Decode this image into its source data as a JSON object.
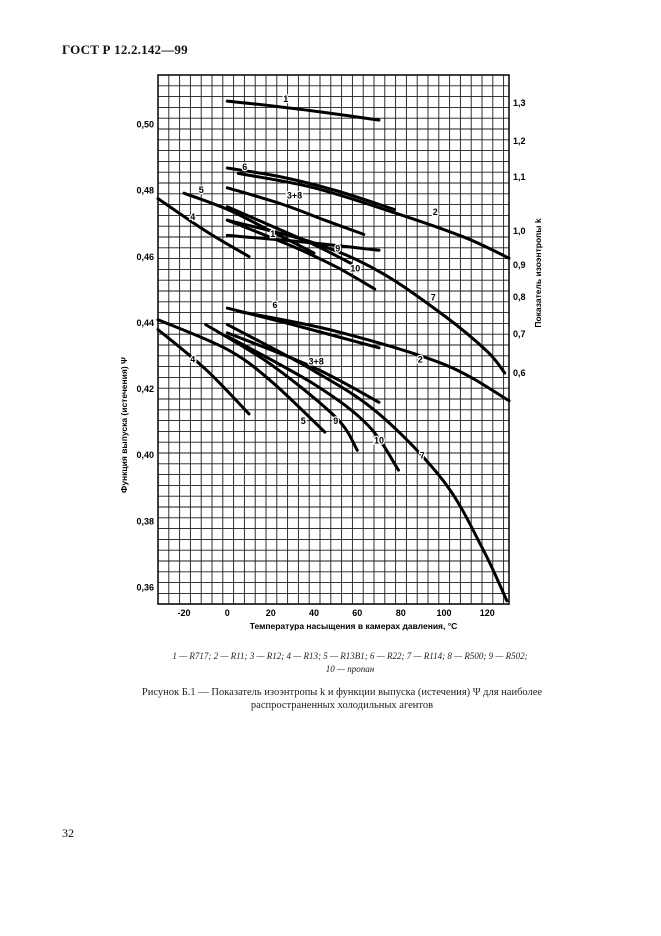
{
  "document": {
    "header": "ГОСТ Р 12.2.142—99",
    "page_number": "32"
  },
  "legend_items": [
    {
      "num": "1",
      "text": "R717"
    },
    {
      "num": "2",
      "text": "R11"
    },
    {
      "num": "3",
      "text": "R12"
    },
    {
      "num": "4",
      "text": "R13"
    },
    {
      "num": "5",
      "text": "R13B1"
    },
    {
      "num": "6",
      "text": "R22"
    },
    {
      "num": "7",
      "text": "R114"
    },
    {
      "num": "8",
      "text": "R500"
    },
    {
      "num": "9",
      "text": "R502"
    },
    {
      "num": "10",
      "text": "пропан"
    }
  ],
  "caption": {
    "label": "Рисунок Б.1",
    "text": "Показатель изоэнтропы k и функции выпуска (истечения) Ψ для наиболее распространенных холодильных агентов"
  },
  "chart_data": {
    "type": "line",
    "xlabel": "Температура насыщения в камерах давления, °С",
    "xlim": [
      -32,
      130
    ],
    "x_ticks": [
      -20,
      0,
      20,
      40,
      60,
      80,
      100,
      120
    ],
    "x_tick_labels": [
      "-20",
      "0",
      "20",
      "40",
      "60",
      "80",
      "100",
      "120"
    ],
    "right_axis": {
      "label": "Показатель изоэнтропы k",
      "ticks": [
        1.3,
        1.2,
        1.1,
        1.0,
        0.9,
        0.8,
        0.7,
        0.6
      ],
      "tick_labels": [
        "1,3",
        "1,2",
        "1,1",
        "1,0",
        "0,9",
        "0,8",
        "0,7",
        "0,6"
      ]
    },
    "left_axis": {
      "label": "Функция выпуска (истечения) Ψ",
      "ylim": [
        0.355,
        0.515
      ],
      "ticks": [
        0.5,
        0.48,
        0.46,
        0.44,
        0.42,
        0.4,
        0.38,
        0.36
      ],
      "tick_labels": [
        "0,50",
        "0,48",
        "0,46",
        "0,44",
        "0,42",
        "0,40",
        "0,38",
        "0,36"
      ]
    },
    "grid": true,
    "k_series": [
      {
        "label": "1",
        "points": [
          [
            0,
            1.305
          ],
          [
            20,
            1.293
          ],
          [
            45,
            1.275
          ],
          [
            70,
            1.255
          ]
        ],
        "label_at": [
          27,
          1.303
        ]
      },
      {
        "label": "6",
        "points": [
          [
            0,
            1.125
          ],
          [
            25,
            1.1
          ],
          [
            50,
            1.075
          ],
          [
            77,
            1.04
          ]
        ],
        "label_at": [
          8,
          1.12
        ]
      },
      {
        "label": "2",
        "points": [
          [
            5,
            1.11
          ],
          [
            40,
            1.08
          ],
          [
            80,
            1.03
          ],
          [
            110,
            0.98
          ],
          [
            130,
            0.92
          ]
        ],
        "label_at": [
          96,
          1.03
        ]
      },
      {
        "label": "3+8",
        "points": [
          [
            0,
            1.08
          ],
          [
            25,
            1.05
          ],
          [
            45,
            1.02
          ],
          [
            63,
            0.99
          ]
        ],
        "label_at": [
          31,
          1.06
        ]
      },
      {
        "label": "5",
        "points": [
          [
            -20,
            1.07
          ],
          [
            0,
            1.04
          ],
          [
            20,
            1.0
          ],
          [
            40,
            0.935
          ]
        ],
        "label_at": [
          -12,
          1.07
        ]
      },
      {
        "label": "9",
        "points": [
          [
            0,
            1.045
          ],
          [
            20,
            1.01
          ],
          [
            40,
            0.96
          ],
          [
            57,
            0.905
          ]
        ],
        "label_at": [
          51,
          0.94
        ]
      },
      {
        "label": "4",
        "points": [
          [
            -32,
            1.06
          ],
          [
            -10,
            1.0
          ],
          [
            10,
            0.925
          ]
        ],
        "label_at": [
          -16,
          1.02
        ]
      },
      {
        "label": "10",
        "points": [
          [
            0,
            1.02
          ],
          [
            30,
            0.955
          ],
          [
            50,
            0.895
          ],
          [
            68,
            0.825
          ]
        ],
        "label_at": [
          59,
          0.88
        ]
      },
      {
        "label": "7",
        "points": [
          [
            0,
            1.02
          ],
          [
            40,
            0.965
          ],
          [
            70,
            0.88
          ],
          [
            100,
            0.75
          ],
          [
            120,
            0.655
          ],
          [
            128,
            0.6
          ]
        ],
        "label_at": [
          95,
          0.79
        ]
      }
    ],
    "psi_series": [
      {
        "label": "1",
        "points": [
          [
            0,
            0.4665
          ],
          [
            35,
            0.4645
          ],
          [
            70,
            0.462
          ]
        ],
        "label_at": [
          21,
          0.466
        ]
      },
      {
        "label": "6",
        "points": [
          [
            0,
            0.4445
          ],
          [
            30,
            0.4395
          ],
          [
            70,
            0.4325
          ]
        ],
        "label_at": [
          22,
          0.4445
        ]
      },
      {
        "label": "2",
        "points": [
          [
            5,
            0.4435
          ],
          [
            50,
            0.4375
          ],
          [
            100,
            0.4275
          ],
          [
            130,
            0.4165
          ]
        ],
        "label_at": [
          89,
          0.428
        ]
      },
      {
        "label": "3+8",
        "points": [
          [
            0,
            0.437
          ],
          [
            40,
            0.4265
          ],
          [
            70,
            0.416
          ]
        ],
        "label_at": [
          41,
          0.4275
        ]
      },
      {
        "label": "4",
        "points": [
          [
            -32,
            0.438
          ],
          [
            -10,
            0.426
          ],
          [
            10,
            0.4125
          ]
        ],
        "label_at": [
          -16,
          0.428
        ]
      },
      {
        "label": "5",
        "points": [
          [
            -32,
            0.441
          ],
          [
            0,
            0.432
          ],
          [
            20,
            0.4225
          ],
          [
            45,
            0.407
          ]
        ],
        "label_at": [
          35,
          0.4095
        ]
      },
      {
        "label": "9",
        "points": [
          [
            -10,
            0.4395
          ],
          [
            20,
            0.4275
          ],
          [
            50,
            0.4115
          ],
          [
            60,
            0.4015
          ]
        ],
        "label_at": [
          50,
          0.4095
        ]
      },
      {
        "label": "10",
        "points": [
          [
            0,
            0.436
          ],
          [
            40,
            0.4215
          ],
          [
            65,
            0.409
          ],
          [
            79,
            0.3955
          ]
        ],
        "label_at": [
          70,
          0.4035
        ]
      },
      {
        "label": "7",
        "points": [
          [
            0,
            0.4395
          ],
          [
            40,
            0.4255
          ],
          [
            70,
            0.4125
          ],
          [
            100,
            0.392
          ],
          [
            118,
            0.3715
          ],
          [
            129,
            0.356
          ]
        ],
        "label_at": [
          90,
          0.399
        ]
      }
    ]
  }
}
